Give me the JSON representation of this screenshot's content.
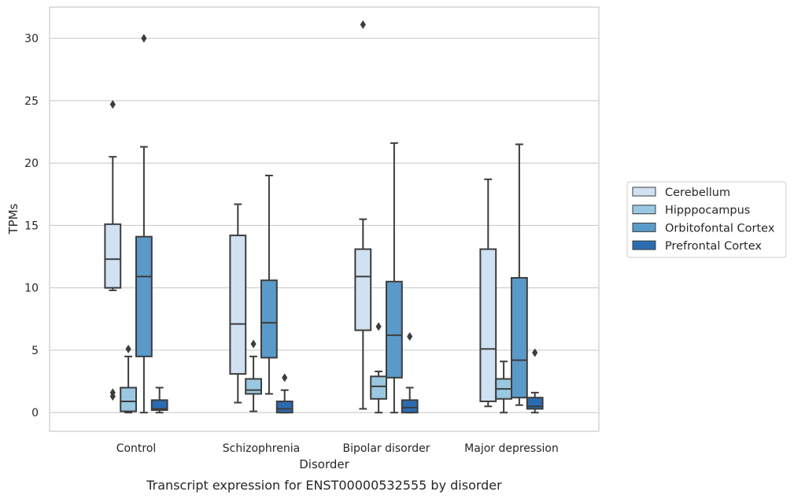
{
  "chart_data": {
    "type": "box",
    "xlabel": "Disorder",
    "ylabel": "TPMs",
    "caption": "Transcript expression for ENST00000532555 by disorder",
    "ylim": [
      -1.5,
      32.5
    ],
    "yticks": [
      0,
      5,
      10,
      15,
      20,
      25,
      30
    ],
    "grid": "horizontal",
    "legend_position": "right",
    "categories": [
      "Control",
      "Schizophrenia",
      "Bipolar disorder",
      "Major depression"
    ],
    "series": [
      {
        "name": "Cerebellum",
        "color": "#d0e1f2",
        "boxes": [
          {
            "whisker_low": 9.8,
            "q1": 10.0,
            "median": 12.3,
            "q3": 15.1,
            "whisker_high": 20.5,
            "outliers": [
              24.7,
              1.6,
              1.3
            ]
          },
          {
            "whisker_low": 0.8,
            "q1": 3.1,
            "median": 7.1,
            "q3": 14.2,
            "whisker_high": 16.7,
            "outliers": []
          },
          {
            "whisker_low": 0.3,
            "q1": 6.6,
            "median": 10.9,
            "q3": 13.1,
            "whisker_high": 15.5,
            "outliers": [
              31.1
            ]
          },
          {
            "whisker_low": 0.5,
            "q1": 0.9,
            "median": 5.1,
            "q3": 13.1,
            "whisker_high": 18.7,
            "outliers": []
          }
        ]
      },
      {
        "name": "Hipppocampus",
        "color": "#9ac8e0",
        "boxes": [
          {
            "whisker_low": 0.0,
            "q1": 0.1,
            "median": 0.9,
            "q3": 2.0,
            "whisker_high": 4.5,
            "outliers": [
              5.1
            ]
          },
          {
            "whisker_low": 0.1,
            "q1": 1.5,
            "median": 1.8,
            "q3": 2.7,
            "whisker_high": 4.5,
            "outliers": [
              5.5
            ]
          },
          {
            "whisker_low": 0.0,
            "q1": 1.1,
            "median": 2.1,
            "q3": 2.9,
            "whisker_high": 3.3,
            "outliers": [
              6.9
            ]
          },
          {
            "whisker_low": 0.0,
            "q1": 1.1,
            "median": 1.9,
            "q3": 2.7,
            "whisker_high": 4.1,
            "outliers": []
          }
        ]
      },
      {
        "name": "Orbitofontal Cortex",
        "color": "#5a9ac9",
        "boxes": [
          {
            "whisker_low": 0.0,
            "q1": 4.5,
            "median": 10.9,
            "q3": 14.1,
            "whisker_high": 21.3,
            "outliers": [
              30.0
            ]
          },
          {
            "whisker_low": 1.5,
            "q1": 4.4,
            "median": 7.2,
            "q3": 10.6,
            "whisker_high": 19.0,
            "outliers": []
          },
          {
            "whisker_low": 0.0,
            "q1": 2.8,
            "median": 6.2,
            "q3": 10.5,
            "whisker_high": 21.6,
            "outliers": []
          },
          {
            "whisker_low": 0.6,
            "q1": 1.2,
            "median": 4.2,
            "q3": 10.8,
            "whisker_high": 21.5,
            "outliers": []
          }
        ]
      },
      {
        "name": "Prefrontal Cortex",
        "color": "#2a6cb2",
        "boxes": [
          {
            "whisker_low": 0.0,
            "q1": 0.2,
            "median": 0.3,
            "q3": 1.0,
            "whisker_high": 2.0,
            "outliers": []
          },
          {
            "whisker_low": 0.0,
            "q1": 0.0,
            "median": 0.3,
            "q3": 0.9,
            "whisker_high": 1.8,
            "outliers": [
              2.8
            ]
          },
          {
            "whisker_low": 0.0,
            "q1": 0.0,
            "median": 0.4,
            "q3": 1.0,
            "whisker_high": 2.0,
            "outliers": [
              6.1
            ]
          },
          {
            "whisker_low": 0.0,
            "q1": 0.3,
            "median": 0.5,
            "q3": 1.2,
            "whisker_high": 1.6,
            "outliers": [
              4.8
            ]
          }
        ]
      }
    ]
  }
}
